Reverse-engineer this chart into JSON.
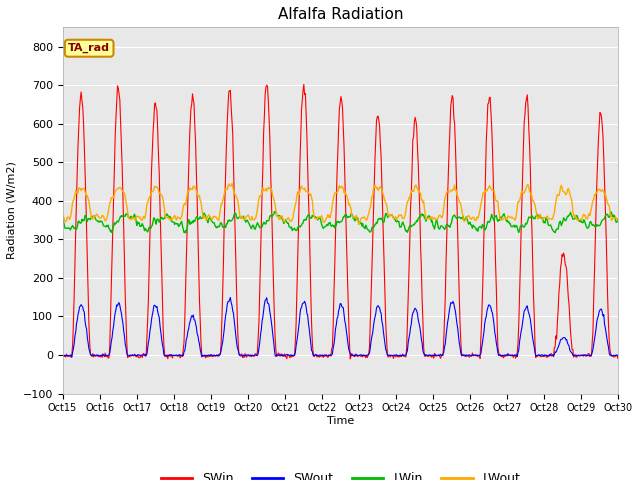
{
  "title": "Alfalfa Radiation",
  "xlabel": "Time",
  "ylabel": "Radiation (W/m2)",
  "ylim": [
    -100,
    850
  ],
  "yticks": [
    -100,
    0,
    100,
    200,
    300,
    400,
    500,
    600,
    700,
    800
  ],
  "fig_bg_color": "#ffffff",
  "plot_bg_color": "#e8e8e8",
  "legend_labels": [
    "SWin",
    "SWout",
    "LWin",
    "LWout"
  ],
  "legend_colors": [
    "#ff0000",
    "#0000ff",
    "#00bb00",
    "#ffaa00"
  ],
  "annotation_text": "TA_rad",
  "annotation_box_facecolor": "#ffff99",
  "annotation_box_edgecolor": "#cc8800",
  "annotation_text_color": "#880000",
  "date_labels": [
    "Oct 15",
    "Oct 16",
    "Oct 17",
    "Oct 18",
    "Oct 19",
    "Oct 20",
    "Oct 21",
    "Oct 22",
    "Oct 23",
    "Oct 24",
    "Oct 25",
    "Oct 26",
    "Oct 27",
    "Oct 28",
    "Oct 29",
    "Oct 30"
  ],
  "figsize": [
    6.4,
    4.8
  ],
  "dpi": 100,
  "SWin_peaks": [
    680,
    690,
    655,
    680,
    690,
    700,
    700,
    665,
    625,
    615,
    675,
    670,
    670,
    265,
    630
  ],
  "SWout_peaks": [
    130,
    135,
    130,
    100,
    145,
    145,
    140,
    130,
    125,
    120,
    140,
    130,
    125,
    45,
    120
  ],
  "LWin_base": 345,
  "LWout_base": 385
}
